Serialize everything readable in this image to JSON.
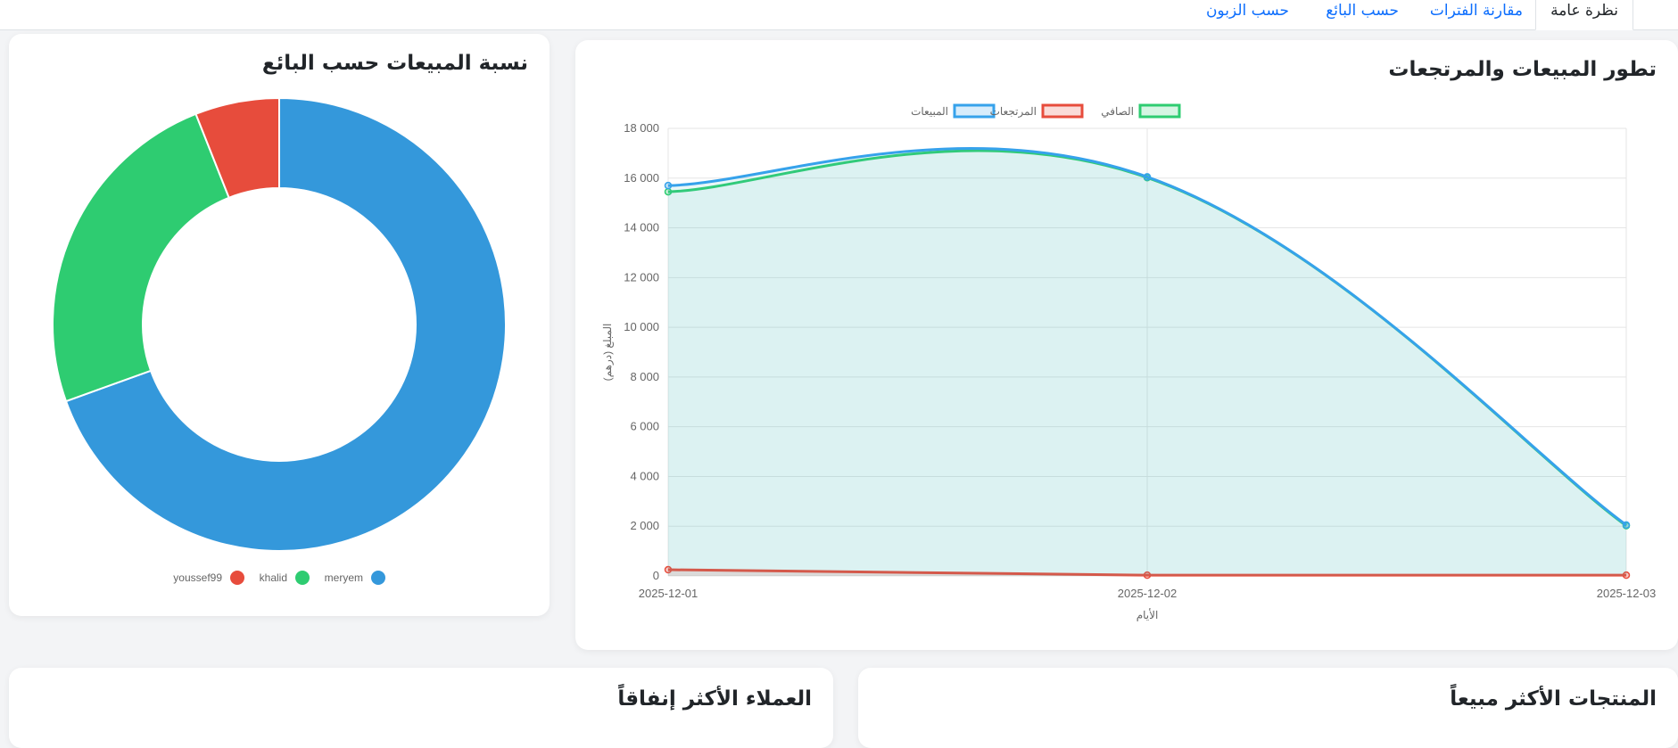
{
  "tabs": [
    {
      "label": "نظرة عامة",
      "active": true
    },
    {
      "label": "مقارنة الفترات",
      "active": false
    },
    {
      "label": "حسب البائع",
      "active": false
    },
    {
      "label": "حسب الزبون",
      "active": false
    }
  ],
  "cards": {
    "sales_returns_title": "تطور المبيعات والمرتجعات",
    "seller_share_title": "نسبة المبيعات حسب البائع",
    "top_products_title": "المنتجات الأكثر مبيعاً",
    "top_customers_title": "العملاء الأكثر إنفاقاً"
  },
  "colors": {
    "sales": "#36a2eb",
    "returns": "#e74c3c",
    "net": "#2ecc71",
    "meryem": "#3498db",
    "khalid": "#2ecc71",
    "youssef99": "#e74c3c"
  },
  "chart_data": [
    {
      "type": "line",
      "title": "تطور المبيعات والمرتجعات",
      "xlabel": "الأيام",
      "ylabel": "المبلغ (درهم)",
      "x": [
        "2025-12-01",
        "2025-12-02",
        "2025-12-03"
      ],
      "ylim": [
        0,
        18000
      ],
      "yticks": [
        "0",
        "2 000",
        "4 000",
        "6 000",
        "8 000",
        "10 000",
        "12 000",
        "14 000",
        "16 000",
        "18 000"
      ],
      "legend_position": "top",
      "grid": true,
      "series": [
        {
          "name": "المبيعات",
          "values": [
            15700,
            16050,
            2050
          ],
          "color": "#36a2eb"
        },
        {
          "name": "المرتجعات",
          "values": [
            250,
            30,
            30
          ],
          "color": "#e74c3c"
        },
        {
          "name": "الصافي",
          "values": [
            15450,
            16020,
            2020
          ],
          "color": "#2ecc71"
        }
      ]
    },
    {
      "type": "pie",
      "title": "نسبة المبيعات حسب البائع",
      "legend_position": "bottom",
      "labels": [
        "meryem",
        "khalid",
        "youssef99"
      ],
      "values": [
        69.5,
        24.5,
        6.0
      ],
      "colors": [
        "#3498db",
        "#2ecc71",
        "#e74c3c"
      ]
    }
  ]
}
